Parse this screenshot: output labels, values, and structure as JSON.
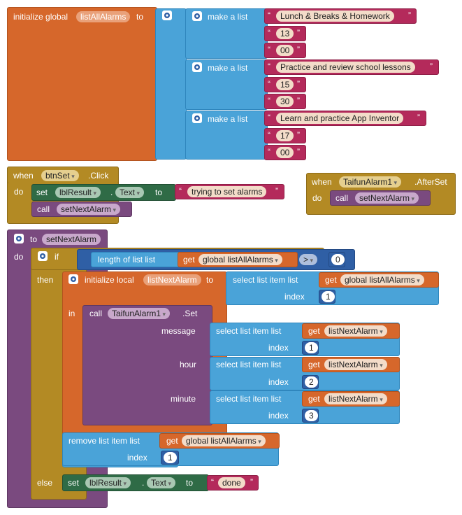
{
  "colors": {
    "variables": "#d6672b",
    "lists": "#4aa3d8",
    "text": "#b42a5b",
    "control": "#b38a24",
    "components_set": "#2f6b46",
    "procedures": "#7a4a7f",
    "math": "#2f5fa5"
  },
  "global_init": {
    "keyword": "initialize global",
    "name": "listAllAlarms",
    "to": "to",
    "outer_gear": "gear-icon",
    "lists": [
      {
        "label": "make a list",
        "items": [
          "Lunch & Breaks & Homework",
          "13",
          "00"
        ]
      },
      {
        "label": "make a list",
        "items": [
          "Practice and review school lessons",
          "15",
          "30"
        ]
      },
      {
        "label": "make a list",
        "items": [
          "Learn and practice App Inventor",
          "17",
          "00"
        ]
      }
    ]
  },
  "btn_click": {
    "when": "when",
    "component": "btnSet",
    "event": ".Click",
    "do": "do",
    "set": "set",
    "set_component": "lblResult",
    "dot": ".",
    "property": "Text",
    "to": "to",
    "text_value": "trying to set alarms",
    "call": "call",
    "procedure": "setNextAlarm"
  },
  "after_set": {
    "when": "when",
    "component": "TaifunAlarm1",
    "event": ".AfterSet",
    "do": "do",
    "call": "call",
    "procedure": "setNextAlarm"
  },
  "procedure": {
    "to": "to",
    "name": "setNextAlarm",
    "do": "do",
    "if": "if",
    "then": "then",
    "else": "else",
    "in": "in",
    "length_label": "length of list  list",
    "get": "get",
    "global_var": "global listAllAlarms",
    "op": ">",
    "zero": "0",
    "init_local": "initialize local",
    "local_name": "listNextAlarm",
    "local_to": "to",
    "select_label": "select list item  list",
    "index_label": "index",
    "one": "1",
    "call": "call",
    "component": "TaifunAlarm1",
    "method": ".Set",
    "params": [
      {
        "name": "message",
        "var": "listNextAlarm",
        "index": "1"
      },
      {
        "name": "hour",
        "var": "listNextAlarm",
        "index": "2"
      },
      {
        "name": "minute",
        "var": "listNextAlarm",
        "index": "3"
      }
    ],
    "remove_label": "remove list item  list",
    "remove_index": "1",
    "else_set": "set",
    "else_component": "lblResult",
    "else_dot": ".",
    "else_property": "Text",
    "else_to": "to",
    "done": "done"
  }
}
